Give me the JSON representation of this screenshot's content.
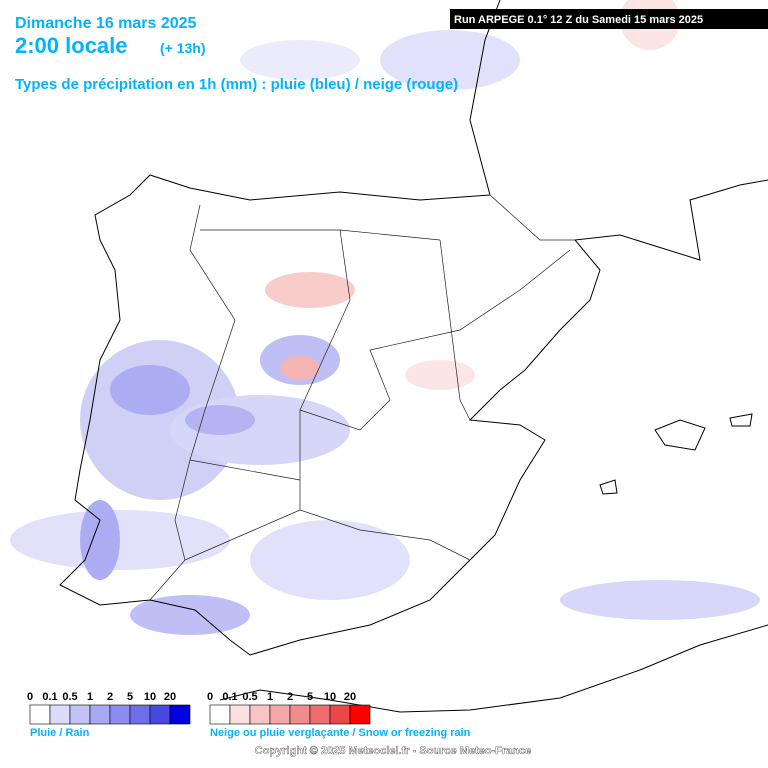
{
  "header": {
    "date": "Dimanche 16 mars 2025",
    "time": "2:00 locale",
    "offset": "(+ 13h)",
    "subtitle": "Types de précipitation en 1h (mm) : pluie (bleu) / neige (rouge)",
    "run": "Run ARPEGE 0.1° 12 Z du Samedi 15 mars 2025"
  },
  "legend_rain": {
    "title": "Pluie / Rain",
    "labels": [
      "0",
      "0.1",
      "0.5",
      "1",
      "2",
      "5",
      "10",
      "20"
    ],
    "colors": [
      "#ffffff",
      "#dcdcfa",
      "#c2c2f6",
      "#a8a8f2",
      "#8c8cee",
      "#6e6ee8",
      "#4848e0",
      "#0000e0"
    ]
  },
  "legend_snow": {
    "title": "Neige ou pluie verglaçante / Snow or freezing rain",
    "labels": [
      "0",
      "0.1",
      "0.5",
      "1",
      "2",
      "5",
      "10",
      "20"
    ],
    "colors": [
      "#ffffff",
      "#fbe0e0",
      "#f8c4c4",
      "#f4a8a8",
      "#f08c8c",
      "#ec6e6e",
      "#e84848",
      "#ff0000"
    ]
  },
  "footer": {
    "copyright": "Copyright © 2025 Meteociel.fr - Source Meteo-France"
  }
}
